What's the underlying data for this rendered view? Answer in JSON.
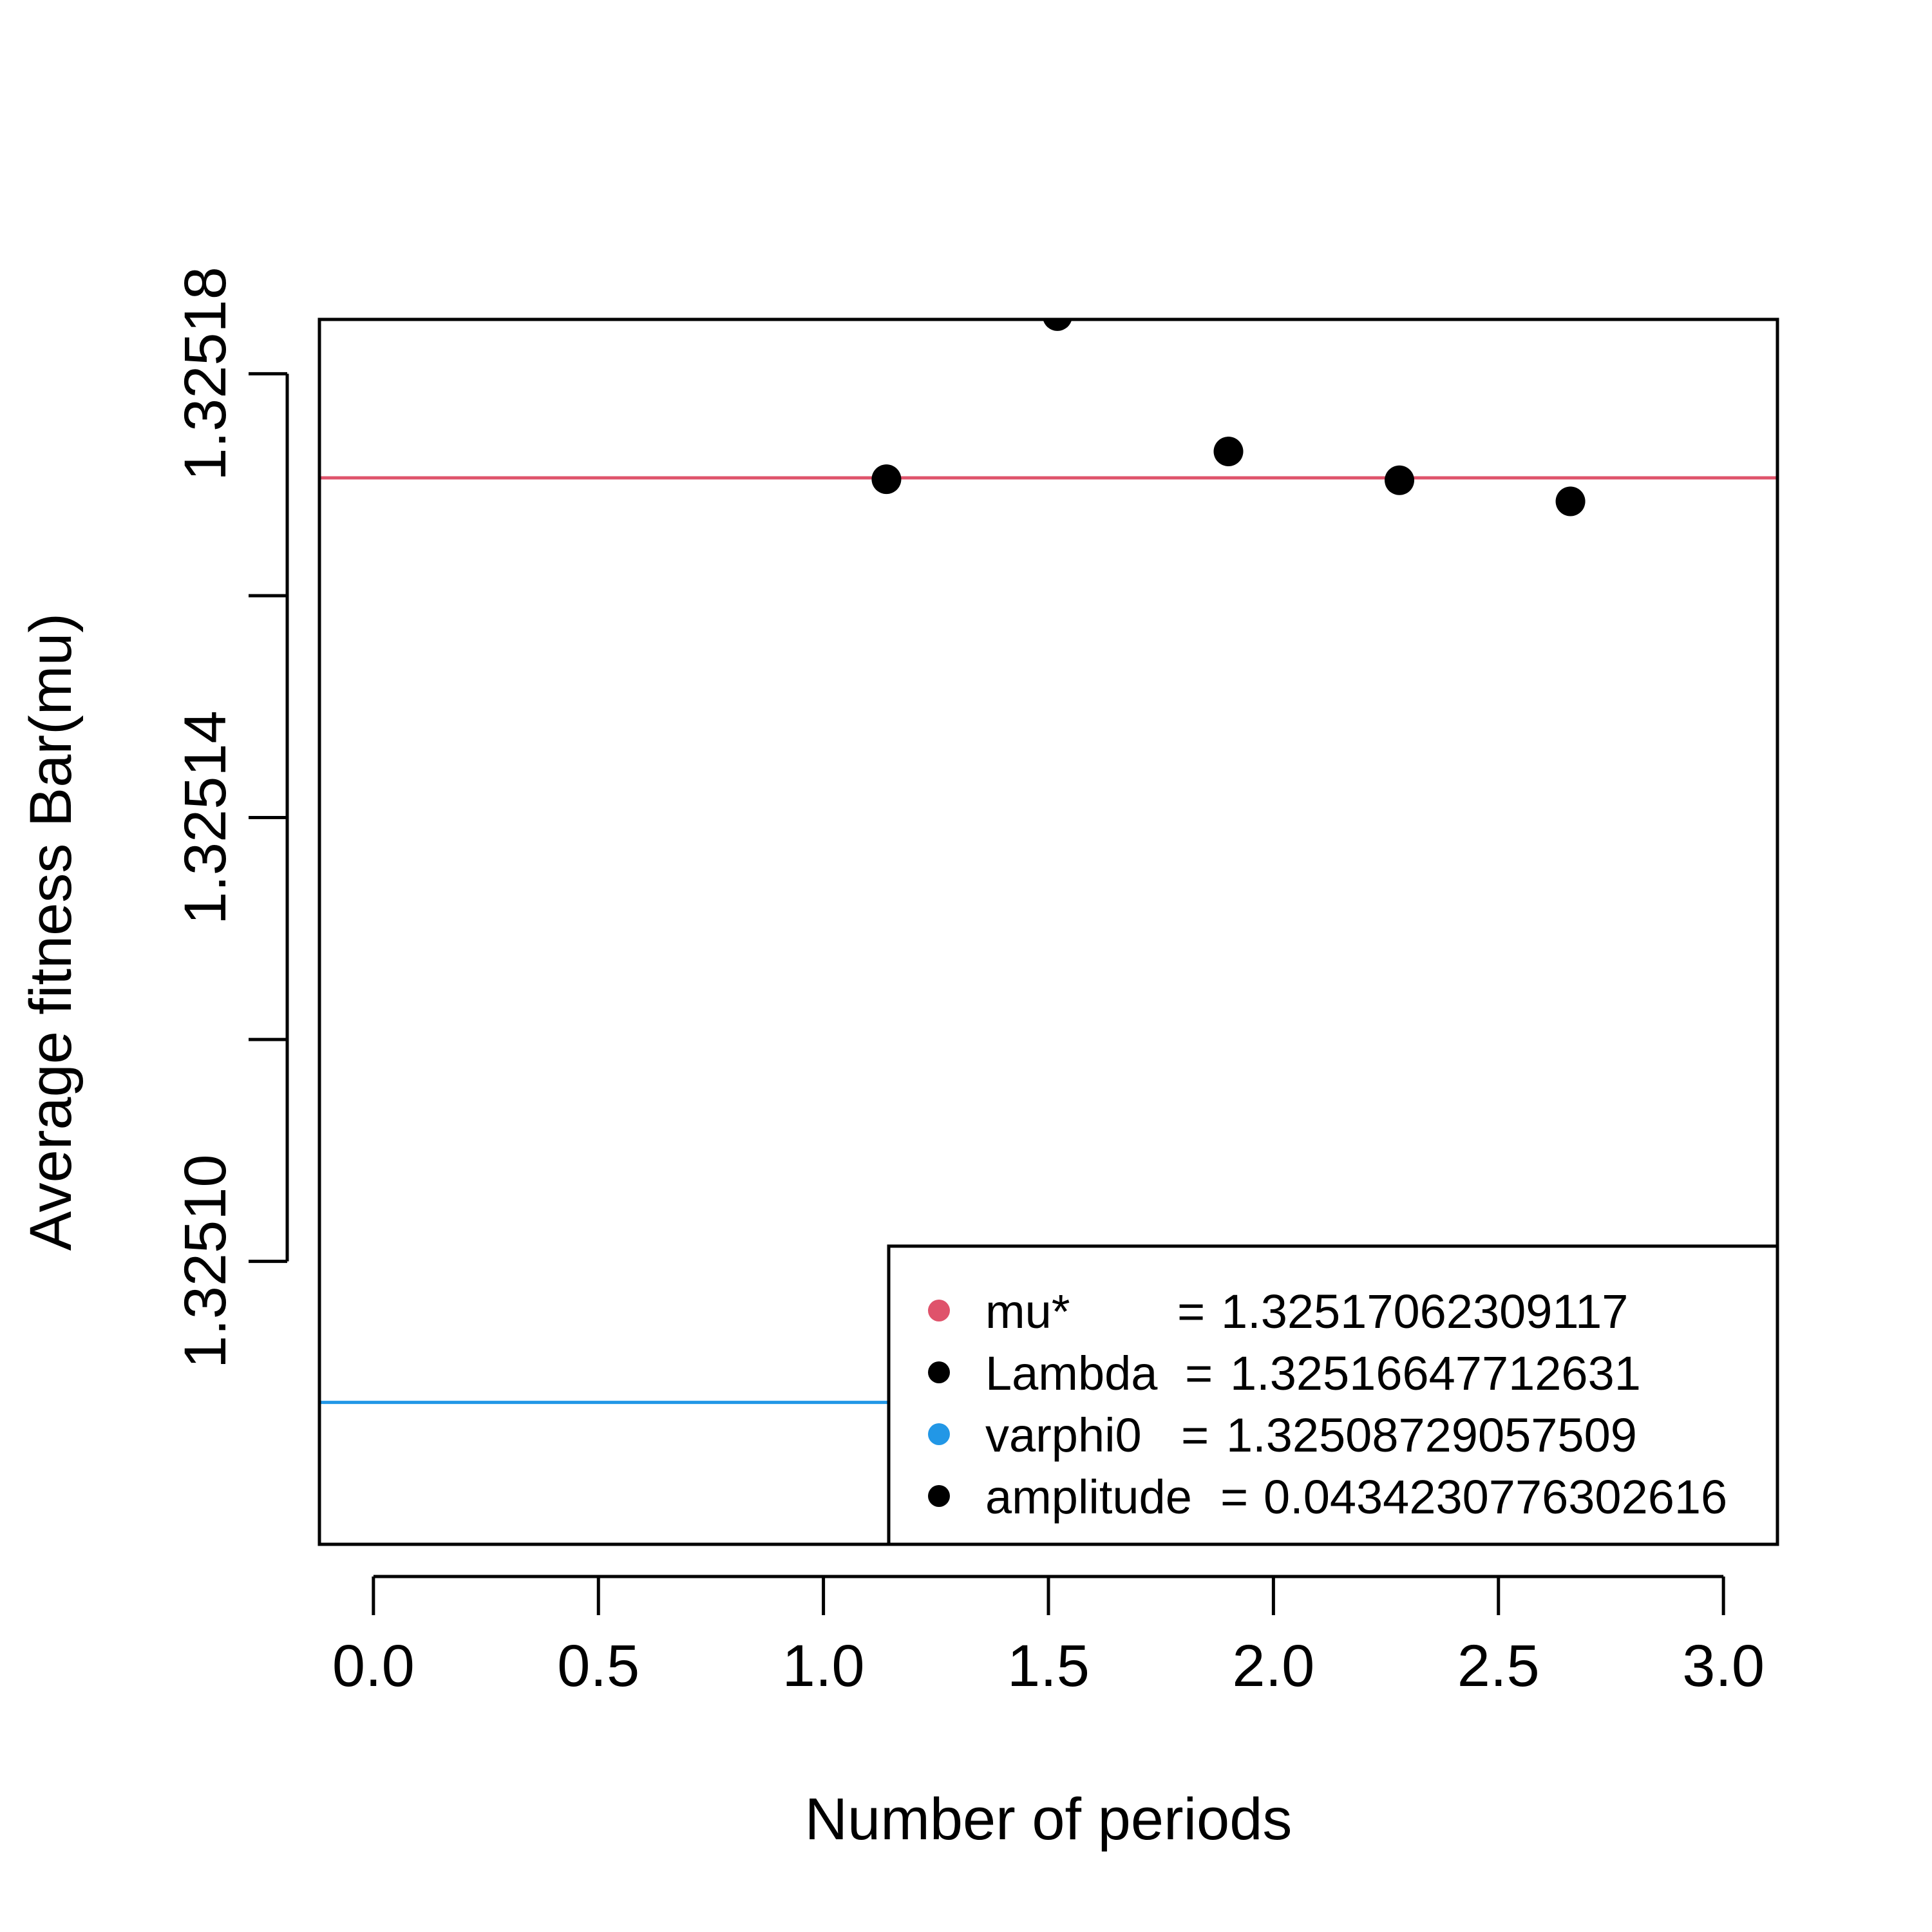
{
  "chart_data": {
    "type": "scatter",
    "title": "",
    "xlabel": "Number of periods",
    "ylabel": "Average fitness Bar(mu)",
    "xlim": [
      -0.12,
      3.12
    ],
    "ylim": [
      1.3250745,
      1.3251849
    ],
    "x_ticks": [
      0.0,
      0.5,
      1.0,
      1.5,
      2.0,
      2.5,
      3.0
    ],
    "x_tick_labels": [
      "0.0",
      "0.5",
      "1.0",
      "1.5",
      "2.0",
      "2.5",
      "3.0"
    ],
    "y_ticks": [
      1.3251,
      1.32512,
      1.32514,
      1.32516,
      1.32518
    ],
    "y_tick_labels": [
      "1.32510",
      "",
      "1.32514",
      "",
      "1.32518"
    ],
    "grid": false,
    "points": {
      "x": [
        1.14,
        1.52,
        1.9,
        2.28,
        2.66
      ],
      "y": [
        1.3251705,
        1.3251852,
        1.325173,
        1.3251704,
        1.3251685
      ],
      "color": "#000000"
    },
    "hlines": [
      {
        "value": 1.32517062309117,
        "color": "#DF536B"
      },
      {
        "value": 1.32508729057509,
        "color": "#2297E6"
      }
    ],
    "legend": {
      "position": "bottom-right",
      "entries": [
        {
          "key": "mu*",
          "sep": "=",
          "value": "1.32517062309117",
          "color": "#DF536B"
        },
        {
          "key": "Lambda",
          "sep": "=",
          "value": "1.32516647712631",
          "color": "#000000"
        },
        {
          "key": "varphi0",
          "sep": "=",
          "value": "1.32508729057509",
          "color": "#2297E6"
        },
        {
          "key": "amplitude",
          "sep": "=",
          "value": "0.0434230776302616",
          "color": "#000000"
        }
      ]
    }
  }
}
